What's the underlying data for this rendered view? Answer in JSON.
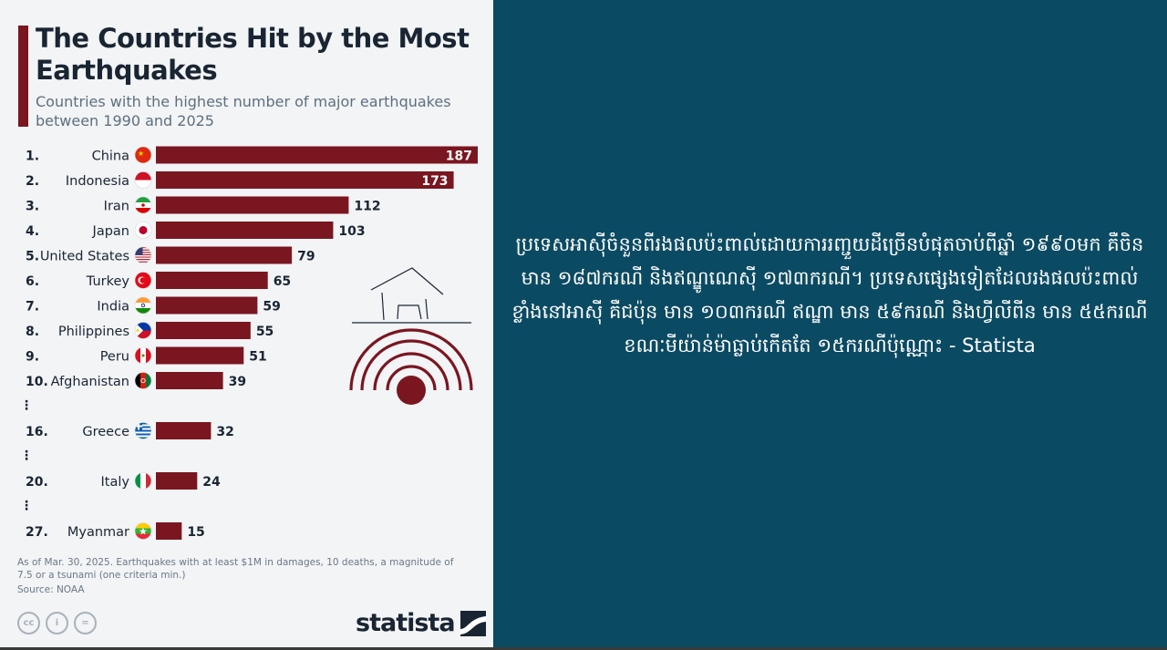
{
  "title": "The Countries Hit by the Most Earthquakes",
  "subtitle": "Countries with the highest number of major earthquakes between 1990 and 2025",
  "footnote": "As of Mar. 30, 2025. Earthquakes with at least $1M in damages, 10 deaths, a magnitude of 7.5 or a tsunami (one criteria min.)",
  "source": "Source: NOAA",
  "brand": "statista",
  "license_icons": [
    "cc",
    "by",
    "nd"
  ],
  "license_labels": [
    "cc",
    "i",
    "="
  ],
  "colors": {
    "bar": "#7a1620",
    "background_right": "#0b4a63",
    "panel": "#f2f4f6",
    "title": "#1a2533"
  },
  "icons": {
    "illustration": "house-earthquake-icon"
  },
  "chart_data": {
    "type": "bar",
    "orientation": "horizontal",
    "xlim": [
      0,
      187
    ],
    "rows": [
      {
        "rank": "1.",
        "country": "China",
        "value": 187,
        "flag": "china-flag-icon",
        "label_inside": true
      },
      {
        "rank": "2.",
        "country": "Indonesia",
        "value": 173,
        "flag": "indonesia-flag-icon",
        "label_inside": true
      },
      {
        "rank": "3.",
        "country": "Iran",
        "value": 112,
        "flag": "iran-flag-icon",
        "label_inside": false
      },
      {
        "rank": "4.",
        "country": "Japan",
        "value": 103,
        "flag": "japan-flag-icon",
        "label_inside": false
      },
      {
        "rank": "5.",
        "country": "United States",
        "value": 79,
        "flag": "us-flag-icon",
        "label_inside": false
      },
      {
        "rank": "6.",
        "country": "Turkey",
        "value": 65,
        "flag": "turkey-flag-icon",
        "label_inside": false
      },
      {
        "rank": "7.",
        "country": "India",
        "value": 59,
        "flag": "india-flag-icon",
        "label_inside": false
      },
      {
        "rank": "8.",
        "country": "Philippines",
        "value": 55,
        "flag": "philippines-flag-icon",
        "label_inside": false
      },
      {
        "rank": "9.",
        "country": "Peru",
        "value": 51,
        "flag": "peru-flag-icon",
        "label_inside": false
      },
      {
        "rank": "10.",
        "country": "Afghanistan",
        "value": 39,
        "flag": "afghanistan-flag-icon",
        "label_inside": false
      },
      {
        "ellipsis": true
      },
      {
        "rank": "16.",
        "country": "Greece",
        "value": 32,
        "flag": "greece-flag-icon",
        "label_inside": false
      },
      {
        "ellipsis": true
      },
      {
        "rank": "20.",
        "country": "Italy",
        "value": 24,
        "flag": "italy-flag-icon",
        "label_inside": false
      },
      {
        "ellipsis": true
      },
      {
        "rank": "27.",
        "country": "Myanmar",
        "value": 15,
        "flag": "myanmar-flag-icon",
        "label_inside": false
      }
    ]
  },
  "caption": "ប្រទេសអាស៊ីចំនួនពីរងផលប៉ះពាល់ដោយការរញ្ជួយដីច្រើនបំផុតចាប់ពីឆ្នាំ ១៩៩០មក គឺចិន មាន ១៨៧ករណី និងឥណ្ឌូណេស៊ី ១៧៣ករណី។ ប្រទេសផ្សេងទៀតដែលរងផលប៉ះពាល់ខ្លាំងនៅអាស៊ី គឺជប៉ុន មាន ១០៣ករណី ឥណ្ឌា មាន ៥៩ករណី និងហ្វីលីពីន មាន ៥៥ករណី ខណៈមីយ៉ាន់ម៉ាធ្លាប់កើតតែ ១៥ករណីប៉ុណ្ណោះ - Statista"
}
